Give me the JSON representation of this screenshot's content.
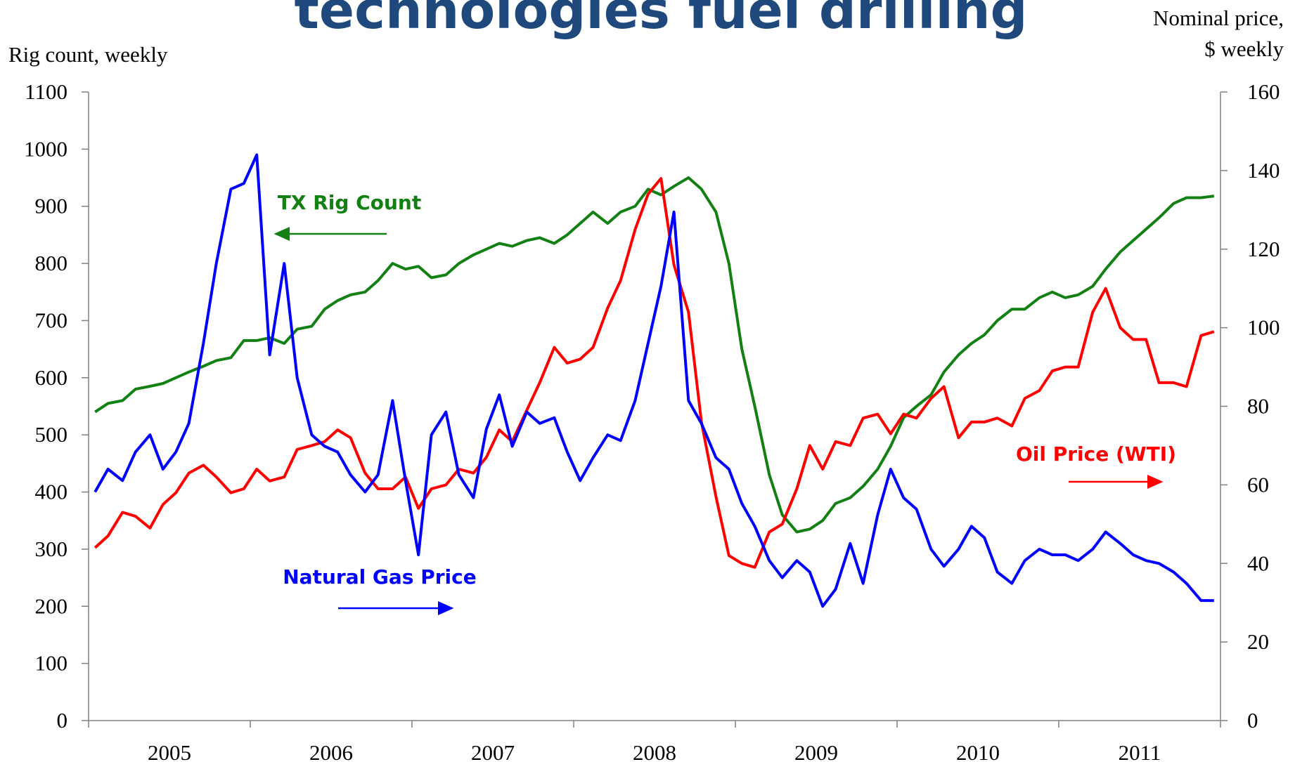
{
  "chart_data": {
    "type": "line",
    "title": "technologies fuel drilling",
    "y_label": "Rig count, weekly",
    "y2_label": [
      "Nominal price,",
      "$ weekly"
    ],
    "categories": [
      "2005",
      "2006",
      "2007",
      "2008",
      "2009",
      "2010",
      "2011"
    ],
    "xlim": [
      2005,
      2012
    ],
    "xticks": [
      2005,
      2006,
      2007,
      2008,
      2009,
      2010,
      2011,
      2012
    ],
    "ylim": [
      0,
      1100
    ],
    "yticks": [
      0,
      100,
      200,
      300,
      400,
      500,
      600,
      700,
      800,
      900,
      1000,
      1100
    ],
    "y2lim": [
      0,
      160
    ],
    "y2ticks": [
      0,
      20,
      40,
      60,
      80,
      100,
      120,
      140,
      160
    ],
    "grid": false,
    "x": [
      2005.04,
      2005.12,
      2005.21,
      2005.29,
      2005.38,
      2005.46,
      2005.54,
      2005.62,
      2005.71,
      2005.79,
      2005.88,
      2005.96,
      2006.04,
      2006.12,
      2006.21,
      2006.29,
      2006.38,
      2006.46,
      2006.54,
      2006.62,
      2006.71,
      2006.79,
      2006.88,
      2006.96,
      2007.04,
      2007.12,
      2007.21,
      2007.29,
      2007.38,
      2007.46,
      2007.54,
      2007.62,
      2007.71,
      2007.79,
      2007.88,
      2007.96,
      2008.04,
      2008.12,
      2008.21,
      2008.29,
      2008.38,
      2008.46,
      2008.54,
      2008.62,
      2008.71,
      2008.79,
      2008.88,
      2008.96,
      2009.04,
      2009.12,
      2009.21,
      2009.29,
      2009.38,
      2009.46,
      2009.54,
      2009.62,
      2009.71,
      2009.79,
      2009.88,
      2009.96,
      2010.04,
      2010.12,
      2010.21,
      2010.29,
      2010.38,
      2010.46,
      2010.54,
      2010.62,
      2010.71,
      2010.79,
      2010.88,
      2010.96,
      2011.04,
      2011.12,
      2011.21,
      2011.29,
      2011.38,
      2011.46,
      2011.54,
      2011.62,
      2011.71,
      2011.79,
      2011.88,
      2011.96
    ],
    "series": [
      {
        "name": "TX Rig Count",
        "color": "#138013",
        "axis": "y",
        "values": [
          540,
          555,
          560,
          580,
          585,
          590,
          600,
          610,
          620,
          630,
          635,
          665,
          665,
          670,
          660,
          685,
          690,
          720,
          735,
          745,
          750,
          770,
          800,
          790,
          795,
          775,
          780,
          800,
          815,
          825,
          835,
          830,
          840,
          845,
          835,
          850,
          870,
          890,
          870,
          890,
          900,
          930,
          920,
          935,
          950,
          930,
          890,
          800,
          650,
          550,
          430,
          360,
          330,
          335,
          350,
          380,
          390,
          410,
          440,
          480,
          530,
          550,
          570,
          610,
          640,
          660,
          675,
          700,
          720,
          720,
          740,
          750,
          740,
          745,
          760,
          790,
          820,
          840,
          860,
          880,
          905,
          915,
          915,
          918
        ]
      },
      {
        "name": "Oil Price (WTI)",
        "color": "#ff0000",
        "axis": "y2",
        "values": [
          44,
          47,
          53,
          52,
          49,
          55,
          58,
          63,
          65,
          62,
          58,
          59,
          64,
          61,
          62,
          69,
          70,
          71,
          74,
          72,
          63,
          59,
          59,
          62,
          54,
          59,
          60,
          64,
          63,
          67,
          74,
          71,
          79,
          86,
          95,
          91,
          92,
          95,
          105,
          112,
          125,
          134,
          138,
          116,
          104,
          76,
          57,
          42,
          40,
          39,
          48,
          50,
          59,
          70,
          64,
          71,
          70,
          77,
          78,
          73,
          78,
          77,
          82,
          85,
          72,
          76,
          76,
          77,
          75,
          82,
          84,
          89,
          90,
          90,
          104,
          110,
          100,
          97,
          97,
          86,
          86,
          85,
          98,
          99
        ]
      },
      {
        "name": "Natural Gas Price",
        "color": "#0000ff",
        "axis": "y",
        "values": [
          400,
          440,
          420,
          470,
          500,
          440,
          470,
          520,
          660,
          800,
          930,
          940,
          990,
          640,
          800,
          600,
          500,
          480,
          470,
          430,
          400,
          430,
          560,
          420,
          290,
          500,
          540,
          430,
          390,
          510,
          570,
          480,
          540,
          520,
          530,
          470,
          420,
          460,
          500,
          490,
          560,
          660,
          760,
          890,
          560,
          520,
          460,
          440,
          380,
          340,
          280,
          250,
          280,
          260,
          200,
          230,
          310,
          240,
          360,
          440,
          390,
          370,
          300,
          270,
          300,
          340,
          320,
          260,
          240,
          280,
          300,
          290,
          290,
          280,
          300,
          330,
          310,
          290,
          280,
          275,
          260,
          240,
          210,
          210
        ]
      }
    ]
  }
}
